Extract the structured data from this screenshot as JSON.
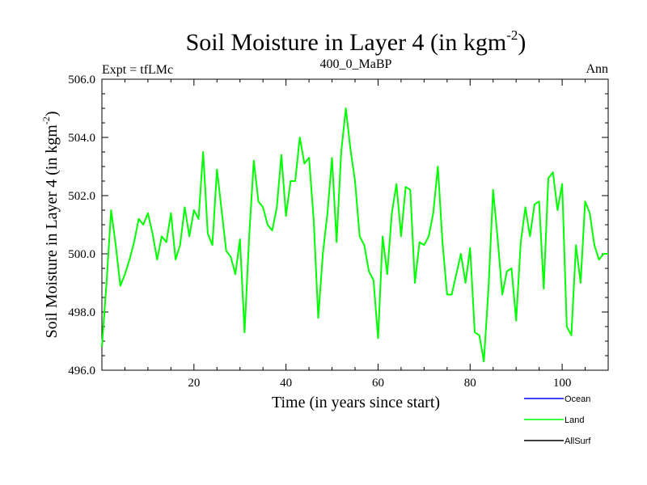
{
  "chart_data": {
    "type": "line",
    "title": "Soil Moisture in Layer 4 (in kgm",
    "title_sup": "-2",
    "title_close": ")",
    "subtitle_left": "Expt = tfLMc",
    "subtitle_center": "400_0_MaBP",
    "subtitle_right": "Ann",
    "xlabel": "Time (in years since start)",
    "ylabel": "Soil Moisture in Layer 4 (in kgm",
    "ylabel_sup": "-2",
    "ylabel_close": ")",
    "xlim": [
      0,
      110
    ],
    "ylim": [
      496,
      506
    ],
    "xticks": [
      20,
      40,
      60,
      80,
      100
    ],
    "yticks": [
      496,
      498,
      500,
      502,
      504,
      506
    ],
    "ytick_labels": [
      "496.0",
      "498.0",
      "500.0",
      "502.0",
      "504.0",
      "506.0"
    ],
    "legend": [
      {
        "label": "Ocean",
        "color": "#0000ff"
      },
      {
        "label": "Land",
        "color": "#00ff00"
      },
      {
        "label": "AllSurf",
        "color": "#000000"
      }
    ],
    "series": [
      {
        "name": "Land",
        "color": "#00ff00",
        "x": [
          0,
          1,
          2,
          3,
          4,
          5,
          6,
          7,
          8,
          9,
          10,
          11,
          12,
          13,
          14,
          15,
          16,
          17,
          18,
          19,
          20,
          21,
          22,
          23,
          24,
          25,
          26,
          27,
          28,
          29,
          30,
          31,
          32,
          33,
          34,
          35,
          36,
          37,
          38,
          39,
          40,
          41,
          42,
          43,
          44,
          45,
          46,
          47,
          48,
          49,
          50,
          51,
          52,
          53,
          54,
          55,
          56,
          57,
          58,
          59,
          60,
          61,
          62,
          63,
          64,
          65,
          66,
          67,
          68,
          69,
          70,
          71,
          72,
          73,
          74,
          75,
          76,
          77,
          78,
          79,
          80,
          81,
          82,
          83,
          84,
          85,
          86,
          87,
          88,
          89,
          90,
          91,
          92,
          93,
          94,
          95,
          96,
          97,
          98,
          99,
          100,
          101,
          102,
          103,
          104,
          105,
          106,
          107,
          108,
          109,
          110
        ],
        "values": [
          496.8,
          499.0,
          501.5,
          500.3,
          498.9,
          499.3,
          499.8,
          500.4,
          501.2,
          501.0,
          501.4,
          500.7,
          499.8,
          500.6,
          500.4,
          501.4,
          499.8,
          500.3,
          501.6,
          500.6,
          501.5,
          501.2,
          503.5,
          500.7,
          500.3,
          502.9,
          501.5,
          500.1,
          499.9,
          499.3,
          500.5,
          497.3,
          500.6,
          503.2,
          501.8,
          501.6,
          501.0,
          500.8,
          501.6,
          503.4,
          501.3,
          502.5,
          502.5,
          504.0,
          503.1,
          503.3,
          501.2,
          497.8,
          500.0,
          501.4,
          503.3,
          500.4,
          503.5,
          505.0,
          503.6,
          502.5,
          500.6,
          500.3,
          499.4,
          499.1,
          497.1,
          500.6,
          499.3,
          501.4,
          502.4,
          500.6,
          502.3,
          502.2,
          499.0,
          500.4,
          500.3,
          500.6,
          501.4,
          503.0,
          500.4,
          498.6,
          498.6,
          499.3,
          500.0,
          499.0,
          500.2,
          497.3,
          497.2,
          496.3,
          498.8,
          502.2,
          500.5,
          498.6,
          499.4,
          499.5,
          497.7,
          500.4,
          501.6,
          500.6,
          501.7,
          501.8,
          498.8,
          502.6,
          502.8,
          501.5,
          502.4,
          497.5,
          497.2,
          500.3,
          499.0,
          501.8,
          501.4,
          500.3,
          499.8,
          500.0,
          500.0
        ]
      }
    ]
  }
}
